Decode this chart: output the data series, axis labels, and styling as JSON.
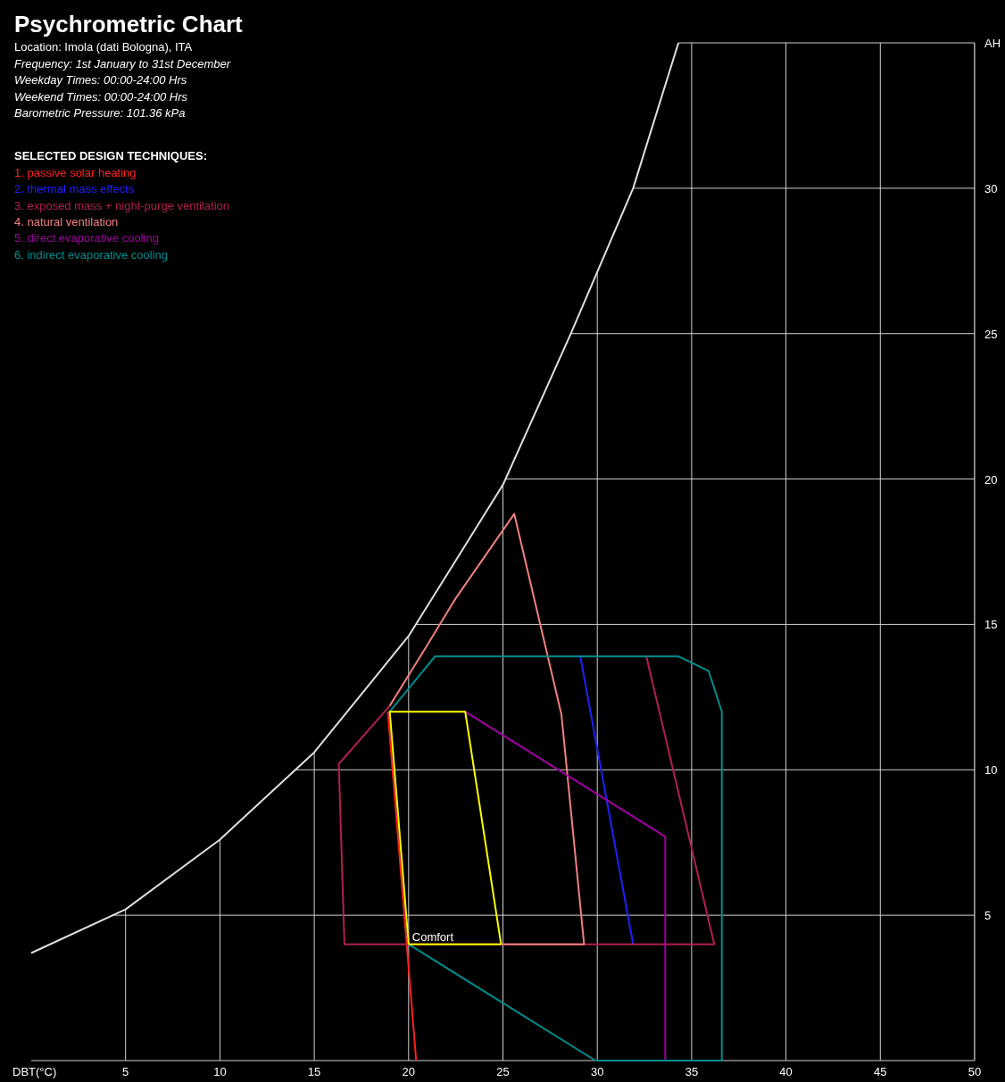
{
  "chart_data": {
    "type": "line",
    "title": "Psychrometric Chart",
    "subtitle": [
      "Location: Imola (dati Bologna), ITA",
      "Frequency: 1st January to 31st December",
      "Weekday Times: 00:00-24:00 Hrs",
      "Weekend Times: 00:00-24:00 Hrs",
      "Barometric Pressure: 101.36 kPa"
    ],
    "xlabel": "DBT(°C)",
    "ylabel": "AH",
    "legend_title": "SELECTED DESIGN TECHNIQUES:",
    "legend": "top left",
    "grid": true,
    "marker": "none",
    "xlim": [
      0,
      50
    ],
    "xticks": [
      5,
      10,
      15,
      20,
      25,
      30,
      35,
      40,
      45,
      50
    ],
    "ylim": [
      0,
      35
    ],
    "yticks": [
      5,
      10,
      15,
      20,
      25,
      30
    ],
    "annotations": [
      "Comfort"
    ],
    "series": [
      {
        "color": "#e0e0e0",
        "x": [
          0,
          5,
          10,
          15,
          20,
          25,
          28.6,
          31.9,
          34.3
        ],
        "values": [
          3.7,
          5.2,
          7.6,
          10.6,
          14.6,
          19.8,
          25,
          30,
          35
        ]
      },
      {
        "name": "1. passive solar heating",
        "color": "#ff2020",
        "x": [
          18.9,
          20.4
        ],
        "values": [
          12.0,
          0
        ]
      },
      {
        "name": "2. thermal mass effects",
        "color": "#2020ff",
        "x": [
          28.9,
          29.1,
          31.9
        ],
        "values": [
          13.9,
          13.9,
          4.0
        ]
      },
      {
        "name": "3. exposed mass + night-purge ventilation",
        "color": "#b0204a",
        "x": [
          19.0,
          16.3,
          16.6,
          36.2,
          32.6
        ],
        "values": [
          12.2,
          10.2,
          4.0,
          4.0,
          13.9
        ]
      },
      {
        "name": "4. natural ventilation",
        "color": "#f08080",
        "x": [
          19.0,
          21.0,
          22.5,
          25.6,
          28.1,
          29.3,
          24.9
        ],
        "values": [
          12.2,
          14.3,
          15.9,
          18.8,
          11.9,
          4.0,
          4.0
        ]
      },
      {
        "name": "5. direct evaporative cooling",
        "color": "#a000a0",
        "x": [
          23.0,
          33.6,
          33.6
        ],
        "values": [
          12.0,
          7.7,
          0
        ]
      },
      {
        "name": "6. indirect evaporative cooling",
        "color": "#008b8b",
        "x": [
          19.0,
          21.4,
          34.3,
          35.9,
          36.6,
          36.6,
          29.9,
          20.0
        ],
        "values": [
          12.0,
          13.9,
          13.9,
          13.4,
          12.0,
          0,
          0,
          4.0
        ]
      },
      {
        "color": "#ffff00",
        "x": [
          20.0,
          19.0,
          23.0,
          24.9
        ],
        "values": [
          4.0,
          12.0,
          12.0,
          4.0
        ]
      },
      {
        "color": "#ffff00",
        "x": [
          20.0,
          24.9
        ],
        "values": [
          4.0,
          4.0
        ]
      }
    ]
  }
}
